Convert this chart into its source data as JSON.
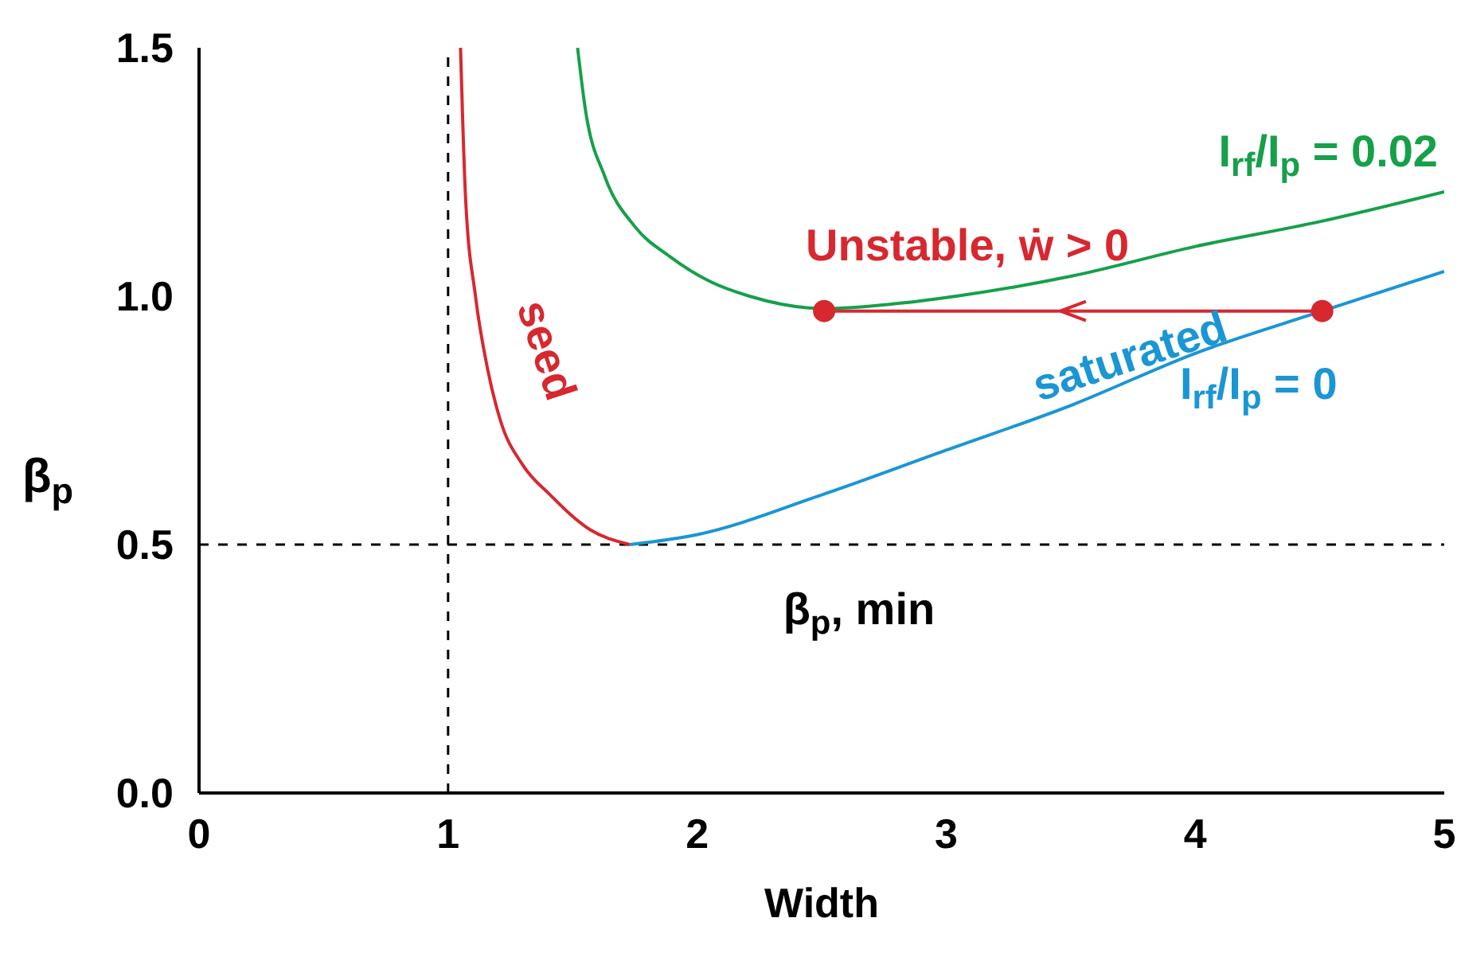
{
  "chart_data": {
    "type": "line",
    "xlabel": "Width",
    "ylabel": "β$_{p}$",
    "xlim": [
      0,
      5
    ],
    "xticks": [
      0,
      1,
      2,
      3,
      4,
      5
    ],
    "ylim": [
      0,
      1.5
    ],
    "yticks": [
      {
        "value": 0,
        "label": "0.0"
      },
      {
        "value": 0.5,
        "label": "0.5"
      },
      {
        "value": 1,
        "label": "1.0"
      },
      {
        "value": 1.5,
        "label": "1.5"
      }
    ],
    "marker": "none",
    "line_style": "solid",
    "series": [
      {
        "name": "seed",
        "color": "#d7282f",
        "x": [
          1.05,
          1.07,
          1.11,
          1.16,
          1.21,
          1.3,
          1.41,
          1.57,
          1.73
        ],
        "values": [
          1.5,
          1.2,
          1.0,
          0.85,
          0.75,
          0.66,
          0.6,
          0.53,
          0.5
        ]
      },
      {
        "name": "I$_{rf}$/I$_{p}$ = 0",
        "color": "#1a96d4",
        "x": [
          1.73,
          2,
          2.5,
          3,
          3.5,
          4,
          4.51,
          5
        ],
        "values": [
          0.5,
          0.52,
          0.6,
          0.69,
          0.78,
          0.885,
          0.97,
          1.05
        ]
      },
      {
        "name": "I$_{rf}$/I$_{p}$ = 0.02",
        "color": "#16a04a",
        "x": [
          1.52,
          1.55,
          1.63,
          1.75,
          1.89,
          2.05,
          2.21,
          2.51,
          2.8,
          3.04,
          3.5,
          4,
          4.5,
          5
        ],
        "values": [
          1.5,
          1.38,
          1.24,
          1.14,
          1.08,
          1.03,
          1.0,
          0.975,
          0.985,
          1.0,
          1.04,
          1.1,
          1.15,
          1.21
        ]
      },
      {
        "name": "Unstable, ẇ > 0",
        "color": "#d7282f",
        "marker": "circle",
        "x": [
          4.51,
          2.51
        ],
        "values": [
          0.97,
          0.97
        ]
      }
    ],
    "ref_lines": [
      {
        "axis": "x",
        "value": 1,
        "line_style": "dashed",
        "color": "#000000"
      },
      {
        "axis": "y",
        "value": 0.5,
        "line_style": "dashed",
        "color": "#000000",
        "label": "β$_{p}$, min"
      }
    ],
    "annotations": [
      {
        "text": "saturated",
        "x": 3.5,
        "y": 0.78
      }
    ]
  }
}
